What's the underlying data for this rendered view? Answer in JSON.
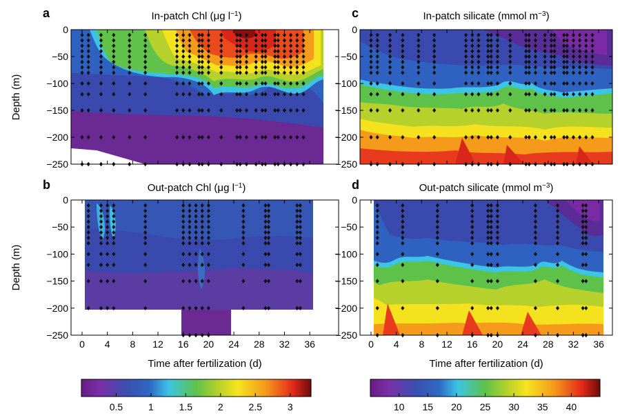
{
  "chart_data": {
    "type": "heatmap",
    "shared": {
      "ylabel": "Depth (m)",
      "xlabel": "Time after fertilization (d)",
      "xlim": [
        -3,
        38
      ],
      "ylim": [
        -250,
        0
      ],
      "xticks": [
        0,
        4,
        8,
        12,
        16,
        20,
        24,
        28,
        32,
        36
      ],
      "yticks": [
        0,
        -50,
        -100,
        -150,
        -200,
        -250
      ],
      "station_depths": [
        -10,
        -20,
        -30,
        -40,
        -50,
        -60,
        -70,
        -80,
        -100,
        -120,
        -150,
        -200,
        -250
      ]
    },
    "panels": [
      {
        "id": "a",
        "letter": "a",
        "title_pre": "In-patch Chl (",
        "title_mu": "μ",
        "title_mid": "g l",
        "title_sup": "−1",
        "title_post": ")",
        "variable": "chlorophyll",
        "stations": [
          0,
          1,
          3,
          5,
          7.5,
          10,
          15,
          16,
          17,
          18.5,
          19,
          20,
          22,
          24.5,
          25,
          26,
          27.5,
          28.5,
          29,
          30.5,
          31,
          32,
          33,
          34,
          35
        ]
      },
      {
        "id": "c",
        "letter": "c",
        "title_pre": "In-patch silicate (mmol m",
        "title_sup": "−3",
        "title_post": ")",
        "variable": "silicate",
        "stations": [
          0,
          1,
          3,
          5,
          7.5,
          10,
          15,
          16,
          17,
          18.5,
          19,
          20,
          22,
          24.5,
          25,
          26,
          27.5,
          28.5,
          29,
          30.5,
          31,
          32,
          33,
          34,
          35
        ]
      },
      {
        "id": "b",
        "letter": "b",
        "title_pre": "Out-patch Chl (",
        "title_mu": "μ",
        "title_mid": "g l",
        "title_sup": "−1",
        "title_post": ")",
        "variable": "chlorophyll",
        "stations": [
          1,
          3,
          4,
          5,
          10,
          16,
          17,
          18,
          19,
          20,
          25.5,
          29,
          29.5,
          34,
          34.5
        ]
      },
      {
        "id": "d",
        "letter": "d",
        "title_pre": "Out-patch silicate (mmol m",
        "title_sup": "−3",
        "title_post": ")",
        "variable": "silicate",
        "stations": [
          1,
          5,
          10.5,
          16,
          18.5,
          19,
          20,
          26,
          29.5,
          33.5,
          34
        ]
      }
    ],
    "colorbars": [
      {
        "variable": "chlorophyll",
        "range": [
          0,
          3.3
        ],
        "ticks": [
          0.5,
          1,
          1.5,
          2,
          2.5,
          3
        ],
        "tick_labels": [
          "0.5",
          "1",
          "1.5",
          "2",
          "2.5",
          "3"
        ]
      },
      {
        "variable": "silicate",
        "range": [
          5,
          45
        ],
        "ticks": [
          10,
          15,
          20,
          25,
          30,
          35,
          40
        ],
        "tick_labels": [
          "10",
          "15",
          "20",
          "25",
          "30",
          "35",
          "40"
        ]
      }
    ]
  }
}
